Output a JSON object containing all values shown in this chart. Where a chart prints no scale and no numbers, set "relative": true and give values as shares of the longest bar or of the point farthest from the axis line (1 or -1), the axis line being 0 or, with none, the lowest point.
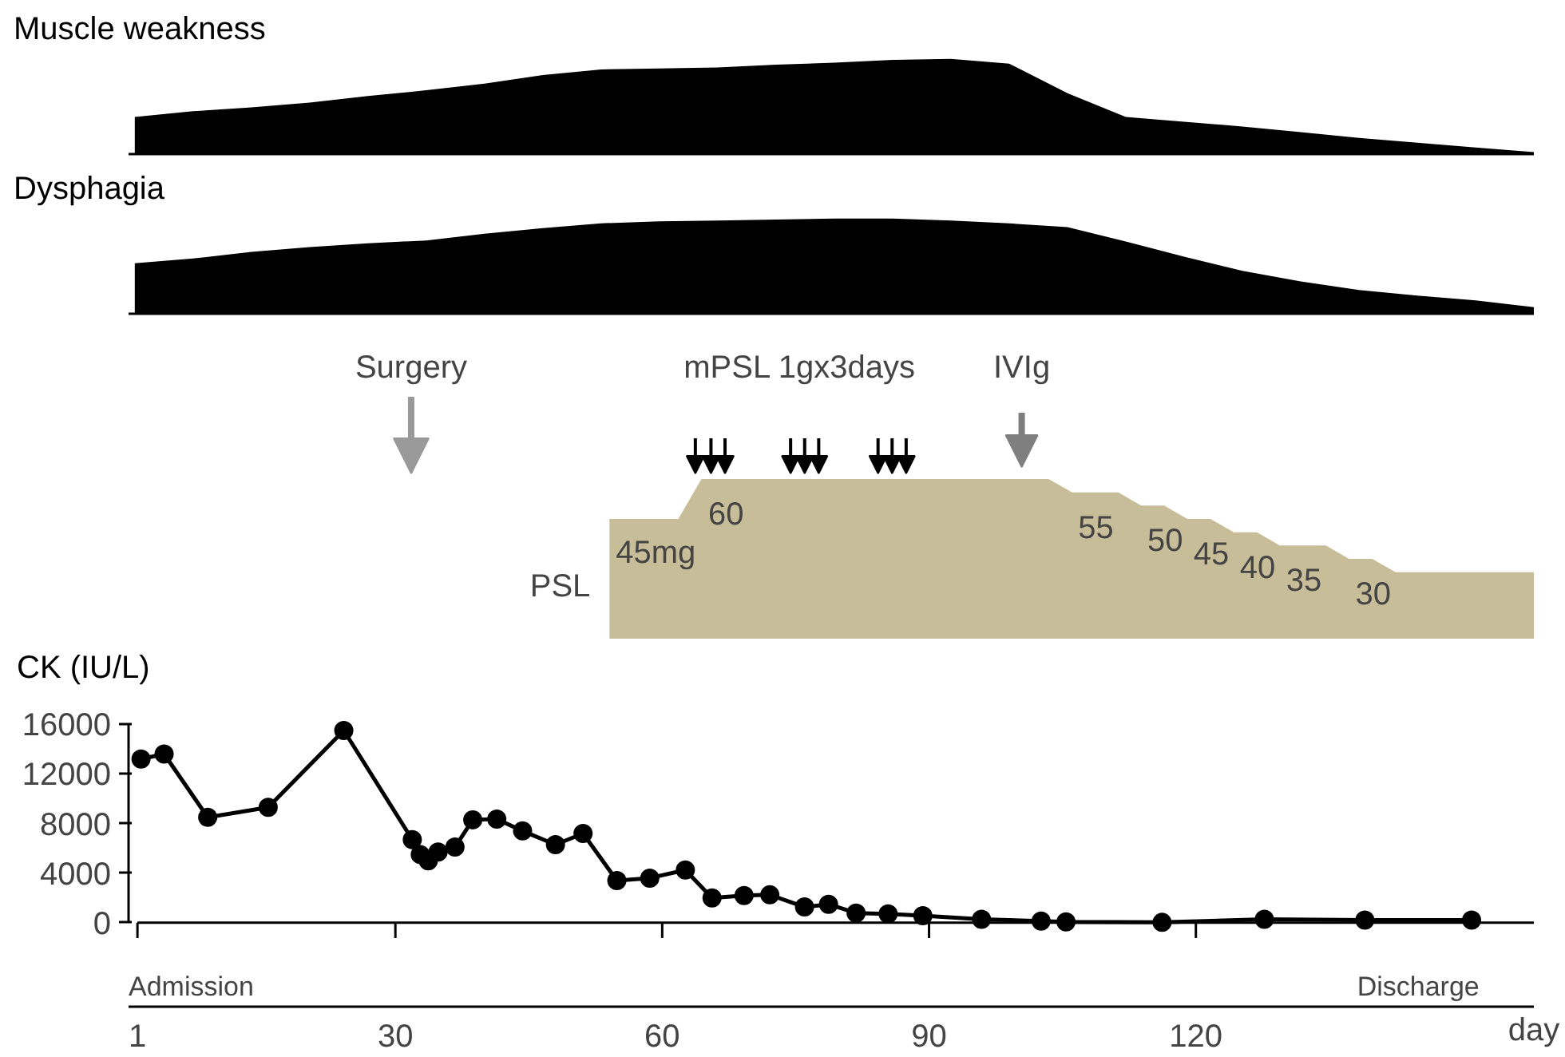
{
  "chart_data": [
    {
      "type": "area",
      "title": "Muscle weakness",
      "relative": true,
      "color": "#000000",
      "categories": [
        null,
        null,
        null,
        null,
        null,
        null,
        null,
        null,
        null,
        null,
        null,
        null,
        null,
        null,
        null,
        null,
        null,
        null,
        null,
        null,
        null,
        null,
        null,
        null,
        null
      ],
      "values": [
        0.39,
        0.45,
        0.49,
        0.54,
        0.61,
        0.67,
        0.74,
        0.83,
        0.89,
        0.9,
        0.91,
        0.94,
        0.96,
        0.99,
        1,
        0.95,
        0.64,
        0.39,
        0.34,
        0.29,
        0.23,
        0.17,
        0.12,
        0.07,
        0.02
      ]
    },
    {
      "type": "area",
      "title": "Dysphagia",
      "relative": true,
      "color": "#000000",
      "categories": [
        null,
        null,
        null,
        null,
        null,
        null,
        null,
        null,
        null,
        null,
        null,
        null,
        null,
        null,
        null,
        null,
        null,
        null,
        null,
        null,
        null,
        null,
        null,
        null,
        null
      ],
      "values": [
        0.53,
        0.58,
        0.65,
        0.7,
        0.74,
        0.77,
        0.84,
        0.9,
        0.95,
        0.97,
        0.98,
        0.99,
        1,
        1,
        0.98,
        0.95,
        0.91,
        0.76,
        0.6,
        0.45,
        0.34,
        0.25,
        0.19,
        0.14,
        0.07
      ]
    },
    {
      "type": "area",
      "color": "#c8bd99",
      "categories": [
        null,
        null,
        null,
        null,
        null,
        null,
        null,
        null,
        null,
        null,
        null,
        null,
        null,
        null,
        null,
        null,
        null,
        null,
        null,
        null,
        null,
        null,
        null,
        null,
        null,
        null,
        null,
        null,
        null,
        null,
        null,
        null,
        null,
        null,
        null,
        null,
        null,
        null,
        null,
        null,
        null
      ],
      "values": [
        45,
        45,
        45,
        45,
        60,
        60,
        60,
        60,
        60,
        60,
        60,
        60,
        60,
        60,
        60,
        60,
        60,
        60,
        60,
        60,
        55,
        55,
        55,
        50,
        50,
        45,
        45,
        40,
        40,
        35,
        35,
        35,
        30,
        30,
        25,
        25,
        25,
        25,
        25,
        25,
        25
      ],
      "value_labels": [
        "45mg",
        null,
        null,
        null,
        "60",
        null,
        null,
        null,
        null,
        null,
        null,
        null,
        null,
        null,
        null,
        null,
        null,
        null,
        null,
        null,
        "55",
        null,
        null,
        "50",
        null,
        "45",
        null,
        "40",
        null,
        "35",
        null,
        null,
        "30",
        null,
        null,
        null,
        null,
        null,
        null,
        null,
        null
      ],
      "annotations": [
        "PSL",
        "Surgery",
        "mPSL 1gx3days",
        "IVIg"
      ]
    },
    {
      "type": "line",
      "ylabel": "CK (IU/L)",
      "xlabel": "day",
      "color": "#000000",
      "marker": "circle",
      "xlim": [
        0,
        158
      ],
      "xticks": [
        1,
        30,
        60,
        90,
        120
      ],
      "ylim": [
        0,
        16000
      ],
      "yticks": [
        0,
        4000,
        8000,
        12000,
        16000
      ],
      "x": [
        1.4,
        4,
        8.9,
        15.7,
        24.2,
        31.9,
        32.8,
        33.7,
        34.8,
        36.7,
        38.7,
        41.4,
        44.3,
        48,
        51.1,
        54.9,
        58.6,
        62.6,
        65.6,
        69.2,
        72.1,
        76,
        78.7,
        81.8,
        85.4,
        89.3,
        95.9,
        102.6,
        105.4,
        116.2,
        127.7,
        139,
        151
      ],
      "values": [
        13200,
        13600,
        8500,
        9300,
        15500,
        6700,
        5500,
        5000,
        5700,
        6100,
        8300,
        8350,
        7400,
        6300,
        7200,
        3400,
        3600,
        4250,
        2000,
        2200,
        2250,
        1270,
        1490,
        780,
        710,
        570,
        280,
        140,
        70,
        30,
        280,
        210,
        210
      ],
      "annotations": [
        "Admission",
        "Discharge"
      ]
    }
  ]
}
